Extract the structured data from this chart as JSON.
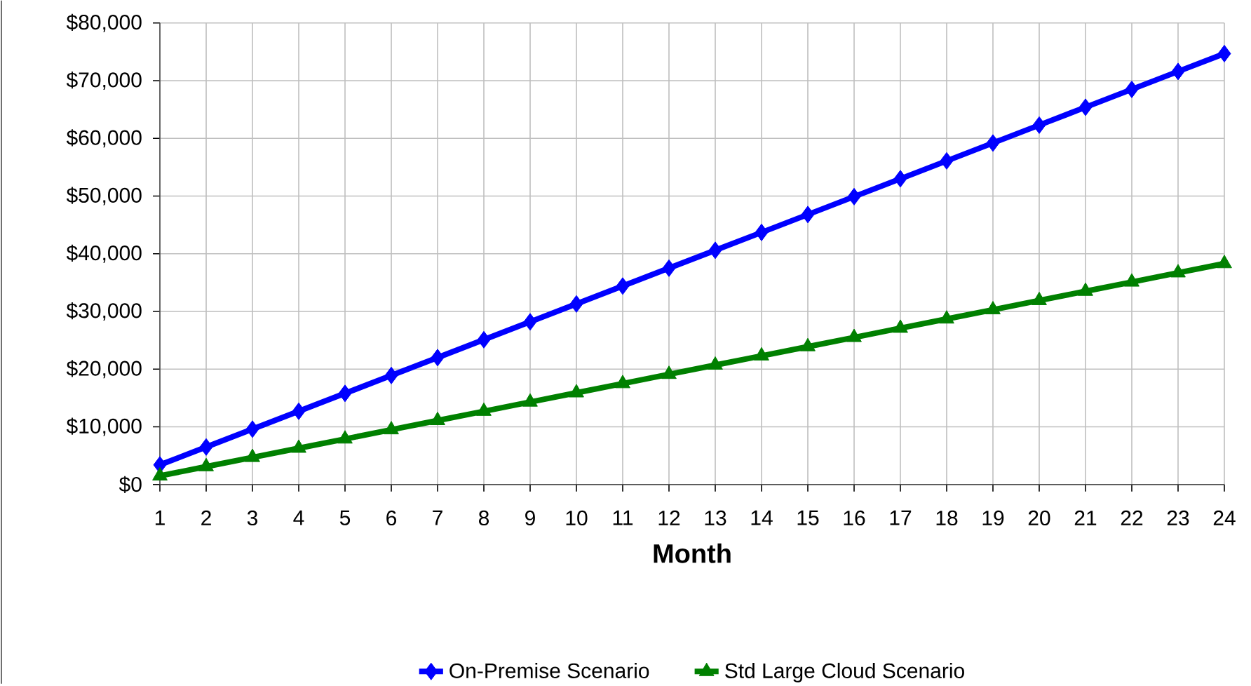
{
  "chart_data": {
    "type": "line",
    "xlabel": "Month",
    "categories": [
      "1",
      "2",
      "3",
      "4",
      "5",
      "6",
      "7",
      "8",
      "9",
      "10",
      "11",
      "12",
      "13",
      "14",
      "15",
      "16",
      "17",
      "18",
      "19",
      "20",
      "21",
      "22",
      "23",
      "24"
    ],
    "series": [
      {
        "name": "On-Premise  Scenario",
        "color": "#0000ff",
        "marker": "diamond",
        "values": [
          3400,
          6500,
          9600,
          12700,
          15800,
          18900,
          22000,
          25100,
          28200,
          31300,
          34400,
          37500,
          40600,
          43700,
          46800,
          49900,
          53000,
          56100,
          59200,
          62300,
          65400,
          68500,
          71600,
          74700
        ]
      },
      {
        "name": "Std Large Cloud Scenario",
        "color": "#008000",
        "marker": "triangle",
        "values": [
          1500,
          3100,
          4700,
          6300,
          7900,
          9500,
          11100,
          12700,
          14300,
          15900,
          17500,
          19100,
          20700,
          22300,
          23900,
          25500,
          27100,
          28700,
          30300,
          31900,
          33500,
          35100,
          36700,
          38300
        ]
      }
    ],
    "ylim": [
      0,
      80000
    ],
    "yticks": [
      {
        "value": 0,
        "label": "$0"
      },
      {
        "value": 10000,
        "label": "$10,000"
      },
      {
        "value": 20000,
        "label": "$20,000"
      },
      {
        "value": 30000,
        "label": "$30,000"
      },
      {
        "value": 40000,
        "label": "$40,000"
      },
      {
        "value": 50000,
        "label": "$50,000"
      },
      {
        "value": 60000,
        "label": "$60,000"
      },
      {
        "value": 70000,
        "label": "$70,000"
      },
      {
        "value": 80000,
        "label": "$80,000"
      }
    ],
    "grid": true,
    "legend": "bottom",
    "line_style": "solid"
  }
}
